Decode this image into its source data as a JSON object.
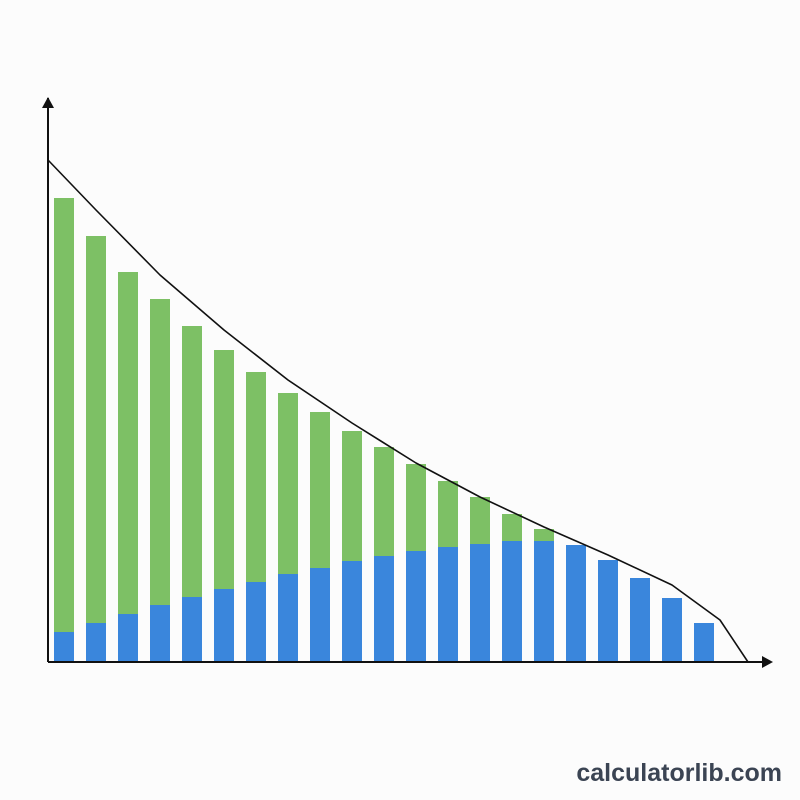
{
  "chart_data": {
    "type": "bar",
    "stacked": true,
    "x": [
      0.5,
      1.5,
      2.5,
      3.5,
      4.5,
      5.5,
      6.5,
      7.5,
      8.5,
      9.5,
      10.5,
      11.5,
      12.5,
      13.5,
      14.5,
      15.5,
      16.5,
      17.5,
      18.5,
      19.5,
      20.5
    ],
    "series": [
      {
        "color": "#3a86dc",
        "values": [
          6,
          7.8,
          9.6,
          11.4,
          13,
          14.6,
          16,
          17.6,
          18.8,
          20.2,
          21.2,
          22.2,
          23,
          23.6,
          24.2,
          24.2,
          23.4,
          20.4,
          16.8,
          12.8,
          7.8
        ]
      },
      {
        "color": "#7dc065",
        "values": [
          86.8,
          77.4,
          68.4,
          61.2,
          54.2,
          47.8,
          42,
          36.2,
          31.2,
          26,
          21.8,
          17.4,
          13.2,
          9.4,
          5.4,
          2.4,
          0,
          0,
          0,
          0,
          0
        ]
      }
    ],
    "curve": {
      "color": "#111111",
      "x": [
        0,
        1.5,
        3.5,
        5.5,
        7.5,
        9.5,
        11.5,
        13.5,
        15.5,
        17.5,
        19.5,
        21,
        21.875
      ],
      "values": [
        100.4,
        90.4,
        77.4,
        66.4,
        56.4,
        47.8,
        39.8,
        33,
        27,
        21.4,
        15.4,
        8.4,
        0
      ]
    },
    "xlim": [
      0,
      22.5
    ],
    "ylim": [
      0,
      112
    ],
    "watermark": "calculatorlib.com"
  }
}
